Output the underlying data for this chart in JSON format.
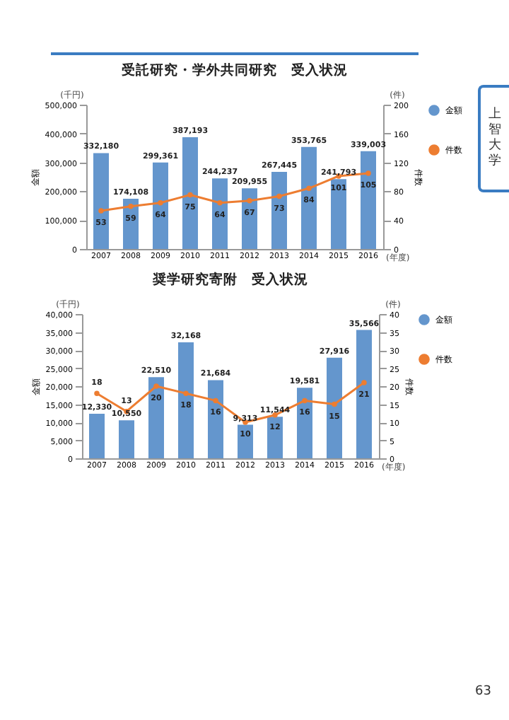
{
  "chart_data": [
    {
      "type": "bar",
      "title": "受託研究・学外共同研究　受入状況",
      "ylabel": "金額",
      "y2label": "件数",
      "categories": [
        "2007",
        "2008",
        "2009",
        "2010",
        "2011",
        "2012",
        "2013",
        "2014",
        "2015",
        "2016"
      ],
      "series": [
        {
          "name": "金額",
          "type": "bar",
          "color": "#6496cd",
          "values": [
            332180,
            174108,
            299361,
            387193,
            244237,
            209955,
            267445,
            353765,
            241793,
            339003
          ],
          "value_labels": [
            "332,180",
            "174,108",
            "299,361",
            "387,193",
            "244,237",
            "209,955",
            "267,445",
            "353,765",
            "241,793",
            "339,003"
          ]
        },
        {
          "name": "件数",
          "type": "line",
          "axis": "y2",
          "color": "#ed7d31",
          "values": [
            53,
            59,
            64,
            75,
            64,
            67,
            73,
            84,
            101,
            105
          ],
          "value_labels": [
            "53",
            "59",
            "64",
            "75",
            "64",
            "67",
            "73",
            "84",
            "101",
            "105"
          ]
        }
      ],
      "ylim": [
        0,
        500000
      ],
      "yticks": [
        0,
        {
          "value": 100000,
          "label": "100,000"
        },
        {
          "value": 200000,
          "label": "200,000"
        },
        {
          "value": 300000,
          "label": "300,000"
        },
        {
          "value": 400000,
          "label": "400,000"
        },
        {
          "value": 500000,
          "label": "500,000"
        }
      ],
      "y2lim": [
        0,
        200
      ],
      "y2ticks": [
        0,
        40,
        80,
        120,
        160,
        200
      ],
      "legend": "right",
      "marker": "circle",
      "line_style": "solid",
      "annotations": [
        "(千円)",
        "(件)",
        "(年度)",
        "上智大学"
      ]
    },
    {
      "type": "bar",
      "title": "奨学研究寄附　受入状況",
      "ylabel": "金額",
      "y2label": "件数",
      "categories": [
        "2007",
        "2008",
        "2009",
        "2010",
        "2011",
        "2012",
        "2013",
        "2014",
        "2015",
        "2016"
      ],
      "series": [
        {
          "name": "金額",
          "type": "bar",
          "color": "#6496cd",
          "values": [
            12330,
            10550,
            22510,
            32168,
            21684,
            9313,
            11544,
            19581,
            27916,
            35566
          ],
          "value_labels": [
            "12,330",
            "10,550",
            "22,510",
            "32,168",
            "21,684",
            "9,313",
            "11,544",
            "19,581",
            "27,916",
            "35,566"
          ]
        },
        {
          "name": "件数",
          "type": "line",
          "axis": "y2",
          "color": "#ed7d31",
          "values": [
            18,
            13,
            20,
            18,
            16,
            10,
            12,
            16,
            15,
            21
          ],
          "value_labels": [
            "18",
            "13",
            "20",
            "18",
            "16",
            "10",
            "12",
            "16",
            "15",
            "21"
          ]
        }
      ],
      "ylim": [
        0,
        40000
      ],
      "yticks": [
        0,
        {
          "value": 5000,
          "label": "5,000"
        },
        {
          "value": 10000,
          "label": "10,000"
        },
        {
          "value": 15000,
          "label": "15,000"
        },
        {
          "value": 20000,
          "label": "20,000"
        },
        {
          "value": 25000,
          "label": "25,000"
        },
        {
          "value": 30000,
          "label": "30,000"
        },
        {
          "value": 35000,
          "label": "35,000"
        },
        {
          "value": 40000,
          "label": "40,000"
        }
      ],
      "y2lim": [
        0,
        40
      ],
      "y2ticks": [
        0,
        5,
        10,
        15,
        20,
        25,
        30,
        35,
        40
      ],
      "legend": "right",
      "marker": "circle",
      "line_style": "solid",
      "annotations": [
        "(千円)",
        "(件)",
        "(年度)",
        "63"
      ]
    }
  ]
}
